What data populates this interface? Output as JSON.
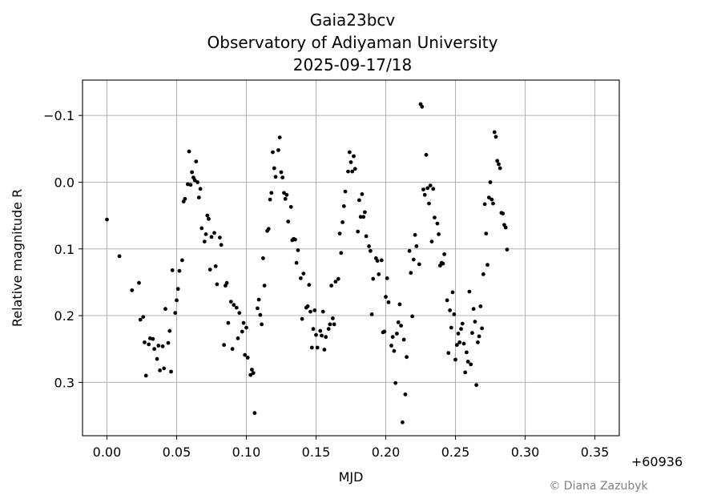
{
  "chart_data": {
    "type": "scatter",
    "title": [
      "Gaia23bcv",
      "Observatory of Adiyaman University",
      "2025-09-17/18"
    ],
    "xlabel": "MJD",
    "ylabel": "Relative magnitude R",
    "x_offset_label": "+60936",
    "xlim": [
      -0.0175,
      0.3675
    ],
    "ylim": [
      0.38,
      -0.153
    ],
    "y_inverted": true,
    "grid": true,
    "marker_color": "#000000",
    "x_ticks": [
      0.0,
      0.05,
      0.1,
      0.15,
      0.2,
      0.25,
      0.3,
      0.35
    ],
    "x_tick_labels": [
      "0.00",
      "0.05",
      "0.10",
      "0.15",
      "0.20",
      "0.25",
      "0.30",
      "0.35"
    ],
    "y_ticks": [
      -0.1,
      0.0,
      0.1,
      0.2,
      0.3
    ],
    "y_tick_labels": [
      "−0.1",
      "0.0",
      "0.1",
      "0.2",
      "0.3"
    ],
    "points": [
      [
        0.0,
        0.056
      ],
      [
        0.009,
        0.111
      ],
      [
        0.018,
        0.162
      ],
      [
        0.023,
        0.151
      ],
      [
        0.024,
        0.206
      ],
      [
        0.026,
        0.202
      ],
      [
        0.027,
        0.24
      ],
      [
        0.028,
        0.29
      ],
      [
        0.03,
        0.243
      ],
      [
        0.031,
        0.234
      ],
      [
        0.033,
        0.235
      ],
      [
        0.034,
        0.25
      ],
      [
        0.036,
        0.265
      ],
      [
        0.037,
        0.245
      ],
      [
        0.038,
        0.282
      ],
      [
        0.04,
        0.246
      ],
      [
        0.041,
        0.279
      ],
      [
        0.042,
        0.19
      ],
      [
        0.044,
        0.241
      ],
      [
        0.045,
        0.223
      ],
      [
        0.046,
        0.284
      ],
      [
        0.047,
        0.132
      ],
      [
        0.049,
        0.196
      ],
      [
        0.05,
        0.177
      ],
      [
        0.051,
        0.16
      ],
      [
        0.052,
        0.133
      ],
      [
        0.054,
        0.117
      ],
      [
        0.055,
        0.029
      ],
      [
        0.056,
        0.025
      ],
      [
        0.058,
        0.003
      ],
      [
        0.059,
        -0.046
      ],
      [
        0.06,
        0.004
      ],
      [
        0.061,
        -0.015
      ],
      [
        0.062,
        -0.007
      ],
      [
        0.063,
        -0.003
      ],
      [
        0.064,
        -0.031
      ],
      [
        0.065,
        0.0
      ],
      [
        0.066,
        0.023
      ],
      [
        0.067,
        0.01
      ],
      [
        0.068,
        0.069
      ],
      [
        0.07,
        0.089
      ],
      [
        0.071,
        0.078
      ],
      [
        0.072,
        0.05
      ],
      [
        0.073,
        0.055
      ],
      [
        0.074,
        0.131
      ],
      [
        0.075,
        0.082
      ],
      [
        0.077,
        0.076
      ],
      [
        0.078,
        0.126
      ],
      [
        0.079,
        0.153
      ],
      [
        0.081,
        0.083
      ],
      [
        0.082,
        0.094
      ],
      [
        0.084,
        0.244
      ],
      [
        0.085,
        0.155
      ],
      [
        0.086,
        0.151
      ],
      [
        0.087,
        0.211
      ],
      [
        0.089,
        0.179
      ],
      [
        0.09,
        0.25
      ],
      [
        0.091,
        0.184
      ],
      [
        0.093,
        0.188
      ],
      [
        0.094,
        0.234
      ],
      [
        0.095,
        0.196
      ],
      [
        0.097,
        0.224
      ],
      [
        0.098,
        0.211
      ],
      [
        0.099,
        0.259
      ],
      [
        0.1,
        0.218
      ],
      [
        0.101,
        0.263
      ],
      [
        0.103,
        0.289
      ],
      [
        0.104,
        0.281
      ],
      [
        0.105,
        0.286
      ],
      [
        0.106,
        0.346
      ],
      [
        0.108,
        0.189
      ],
      [
        0.109,
        0.176
      ],
      [
        0.11,
        0.199
      ],
      [
        0.111,
        0.213
      ],
      [
        0.112,
        0.114
      ],
      [
        0.113,
        0.155
      ],
      [
        0.115,
        0.073
      ],
      [
        0.116,
        0.07
      ],
      [
        0.117,
        0.026
      ],
      [
        0.118,
        0.016
      ],
      [
        0.119,
        -0.045
      ],
      [
        0.12,
        -0.021
      ],
      [
        0.121,
        -0.008
      ],
      [
        0.123,
        -0.048
      ],
      [
        0.124,
        -0.067
      ],
      [
        0.125,
        -0.015
      ],
      [
        0.126,
        -0.007
      ],
      [
        0.127,
        0.016
      ],
      [
        0.128,
        0.025
      ],
      [
        0.129,
        0.019
      ],
      [
        0.13,
        0.059
      ],
      [
        0.132,
        0.037
      ],
      [
        0.133,
        0.087
      ],
      [
        0.134,
        0.085
      ],
      [
        0.135,
        0.086
      ],
      [
        0.136,
        0.121
      ],
      [
        0.137,
        0.102
      ],
      [
        0.139,
        0.144
      ],
      [
        0.14,
        0.205
      ],
      [
        0.141,
        0.137
      ],
      [
        0.143,
        0.188
      ],
      [
        0.144,
        0.186
      ],
      [
        0.145,
        0.154
      ],
      [
        0.146,
        0.194
      ],
      [
        0.147,
        0.248
      ],
      [
        0.148,
        0.22
      ],
      [
        0.149,
        0.192
      ],
      [
        0.15,
        0.229
      ],
      [
        0.151,
        0.248
      ],
      [
        0.153,
        0.223
      ],
      [
        0.154,
        0.23
      ],
      [
        0.155,
        0.194
      ],
      [
        0.156,
        0.251
      ],
      [
        0.157,
        0.232
      ],
      [
        0.159,
        0.22
      ],
      [
        0.16,
        0.213
      ],
      [
        0.161,
        0.155
      ],
      [
        0.162,
        0.204
      ],
      [
        0.163,
        0.213
      ],
      [
        0.164,
        0.149
      ],
      [
        0.166,
        0.145
      ],
      [
        0.167,
        0.077
      ],
      [
        0.168,
        0.106
      ],
      [
        0.169,
        0.06
      ],
      [
        0.17,
        0.036
      ],
      [
        0.171,
        0.014
      ],
      [
        0.173,
        -0.016
      ],
      [
        0.174,
        -0.045
      ],
      [
        0.175,
        -0.03
      ],
      [
        0.176,
        -0.016
      ],
      [
        0.177,
        -0.039
      ],
      [
        0.178,
        -0.02
      ],
      [
        0.18,
        0.074
      ],
      [
        0.181,
        0.027
      ],
      [
        0.182,
        0.052
      ],
      [
        0.183,
        0.018
      ],
      [
        0.184,
        0.052
      ],
      [
        0.185,
        0.045
      ],
      [
        0.186,
        0.081
      ],
      [
        0.188,
        0.096
      ],
      [
        0.189,
        0.103
      ],
      [
        0.19,
        0.198
      ],
      [
        0.191,
        0.145
      ],
      [
        0.193,
        0.114
      ],
      [
        0.194,
        0.118
      ],
      [
        0.195,
        0.138
      ],
      [
        0.197,
        0.117
      ],
      [
        0.198,
        0.225
      ],
      [
        0.199,
        0.224
      ],
      [
        0.2,
        0.172
      ],
      [
        0.201,
        0.144
      ],
      [
        0.202,
        0.18
      ],
      [
        0.204,
        0.245
      ],
      [
        0.205,
        0.232
      ],
      [
        0.206,
        0.253
      ],
      [
        0.207,
        0.301
      ],
      [
        0.208,
        0.227
      ],
      [
        0.209,
        0.21
      ],
      [
        0.21,
        0.183
      ],
      [
        0.211,
        0.215
      ],
      [
        0.212,
        0.36
      ],
      [
        0.213,
        0.236
      ],
      [
        0.214,
        0.318
      ],
      [
        0.215,
        0.262
      ],
      [
        0.217,
        0.103
      ],
      [
        0.218,
        0.136
      ],
      [
        0.219,
        0.201
      ],
      [
        0.22,
        0.116
      ],
      [
        0.221,
        0.079
      ],
      [
        0.222,
        0.096
      ],
      [
        0.224,
        0.123
      ],
      [
        0.225,
        -0.117
      ],
      [
        0.226,
        -0.113
      ],
      [
        0.227,
        0.011
      ],
      [
        0.228,
        0.019
      ],
      [
        0.229,
        -0.041
      ],
      [
        0.23,
        0.009
      ],
      [
        0.231,
        0.032
      ],
      [
        0.232,
        0.005
      ],
      [
        0.233,
        0.089
      ],
      [
        0.234,
        0.01
      ],
      [
        0.235,
        0.053
      ],
      [
        0.237,
        0.062
      ],
      [
        0.238,
        0.078
      ],
      [
        0.239,
        0.125
      ],
      [
        0.24,
        0.121
      ],
      [
        0.241,
        0.122
      ],
      [
        0.242,
        0.108
      ],
      [
        0.244,
        0.177
      ],
      [
        0.245,
        0.256
      ],
      [
        0.246,
        0.192
      ],
      [
        0.247,
        0.218
      ],
      [
        0.248,
        0.165
      ],
      [
        0.249,
        0.198
      ],
      [
        0.25,
        0.266
      ],
      [
        0.251,
        0.244
      ],
      [
        0.252,
        0.227
      ],
      [
        0.253,
        0.24
      ],
      [
        0.254,
        0.22
      ],
      [
        0.255,
        0.212
      ],
      [
        0.256,
        0.242
      ],
      [
        0.257,
        0.285
      ],
      [
        0.258,
        0.255
      ],
      [
        0.259,
        0.269
      ],
      [
        0.26,
        0.164
      ],
      [
        0.261,
        0.273
      ],
      [
        0.262,
        0.226
      ],
      [
        0.263,
        0.19
      ],
      [
        0.264,
        0.209
      ],
      [
        0.265,
        0.304
      ],
      [
        0.266,
        0.24
      ],
      [
        0.267,
        0.231
      ],
      [
        0.268,
        0.186
      ],
      [
        0.269,
        0.219
      ],
      [
        0.27,
        0.138
      ],
      [
        0.271,
        0.033
      ],
      [
        0.272,
        0.077
      ],
      [
        0.273,
        0.124
      ],
      [
        0.274,
        0.023
      ],
      [
        0.275,
        0.0
      ],
      [
        0.276,
        0.026
      ],
      [
        0.277,
        0.032
      ],
      [
        0.278,
        -0.075
      ],
      [
        0.279,
        -0.068
      ],
      [
        0.28,
        -0.032
      ],
      [
        0.281,
        -0.027
      ],
      [
        0.282,
        -0.021
      ],
      [
        0.283,
        0.046
      ],
      [
        0.284,
        0.047
      ],
      [
        0.285,
        0.064
      ],
      [
        0.286,
        0.068
      ],
      [
        0.287,
        0.101
      ]
    ],
    "credit": "© Diana Zazubyk"
  }
}
